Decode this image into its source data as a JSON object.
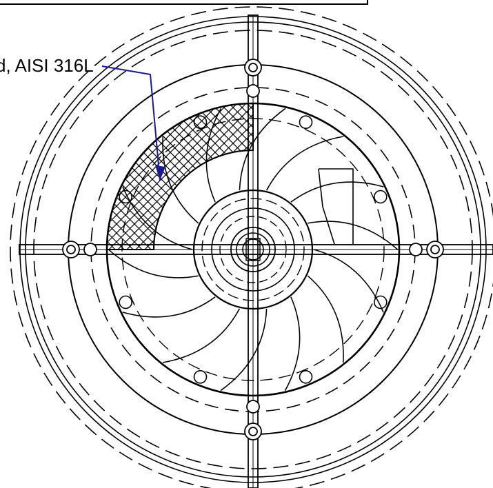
{
  "callout": {
    "label": "d, AISI 316L"
  },
  "colors": {
    "line": "#000000",
    "leader": "#1a1a8c",
    "background": "#ffffff"
  },
  "features": {
    "hatched_region": "cross-hatch",
    "line_styles": [
      "solid",
      "dashed"
    ]
  }
}
